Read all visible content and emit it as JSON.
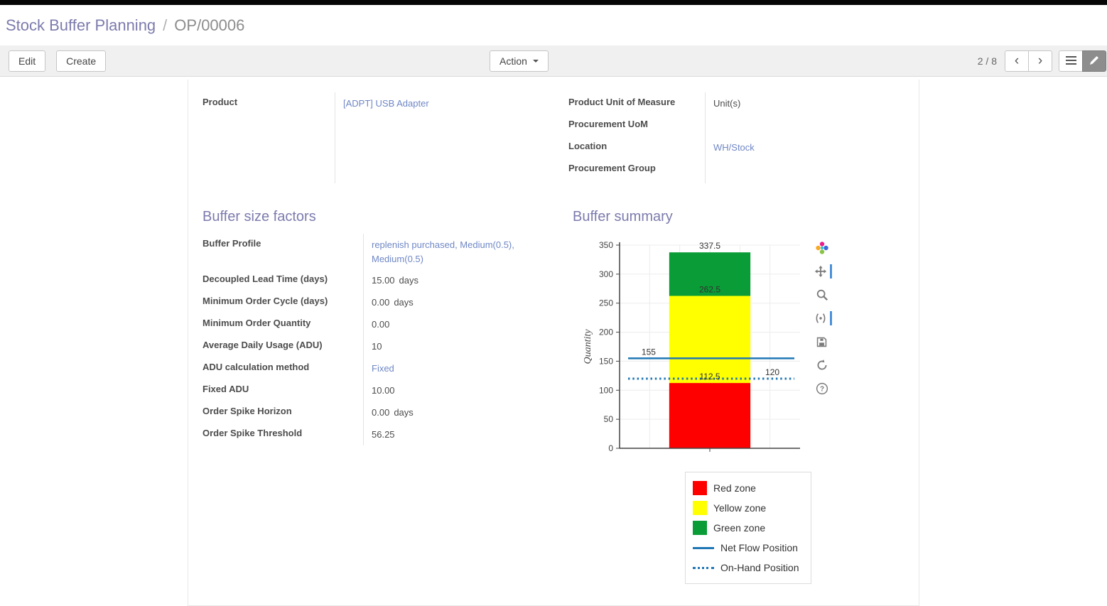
{
  "colors": {
    "heading": "#7c7bad",
    "link": "#6f87c5"
  },
  "breadcrumb": {
    "parent": "Stock Buffer Planning",
    "separator": "/",
    "current": "OP/00006"
  },
  "toolbar": {
    "edit_label": "Edit",
    "create_label": "Create",
    "action_label": "Action",
    "pager": "2 / 8",
    "icons": [
      "chevron-left",
      "chevron-right",
      "list-view",
      "form-view"
    ]
  },
  "form": {
    "product": {
      "label": "Product",
      "value": "[ADPT] USB Adapter",
      "link": true
    },
    "right": [
      {
        "name": "product-unit-of-measure",
        "label": "Product Unit of Measure",
        "value": "Unit(s)",
        "unit": "",
        "link": false
      },
      {
        "name": "procurement-uom",
        "label": "Procurement UoM",
        "value": "",
        "unit": "",
        "link": false
      },
      {
        "name": "location",
        "label": "Location",
        "value": "WH/Stock",
        "unit": "",
        "link": true
      },
      {
        "name": "procurement-group",
        "label": "Procurement Group",
        "value": "",
        "unit": "",
        "link": false
      }
    ],
    "sections": {
      "factors_title": "Buffer size factors",
      "summary_title": "Buffer summary"
    },
    "factors": {
      "rows": [
        {
          "name": "buffer-profile",
          "label": "Buffer Profile",
          "value": "replenish purchased, Medium(0.5), Medium(0.5)",
          "unit": "",
          "link": true
        },
        {
          "name": "decoupled-lead-time",
          "label": "Decoupled Lead Time (days)",
          "value": "15.00",
          "unit": "days",
          "link": false
        },
        {
          "name": "minimum-order-cycle",
          "label": "Minimum Order Cycle (days)",
          "value": "0.00",
          "unit": "days",
          "link": false
        },
        {
          "name": "minimum-order-quantity",
          "label": "Minimum Order Quantity",
          "value": "0.00",
          "unit": "",
          "link": false
        },
        {
          "name": "average-daily-usage-adu",
          "label": "Average Daily Usage (ADU)",
          "value": "10",
          "unit": "",
          "link": false
        },
        {
          "name": "adu-calculation-method",
          "label": "ADU calculation method",
          "value": "Fixed",
          "unit": "",
          "link": true
        },
        {
          "name": "fixed-adu",
          "label": "Fixed ADU",
          "value": "10.00",
          "unit": "",
          "link": false
        },
        {
          "name": "order-spike-horizon",
          "label": "Order Spike Horizon",
          "value": "0.00",
          "unit": "days",
          "link": false
        },
        {
          "name": "order-spike-threshold",
          "label": "Order Spike Threshold",
          "value": "56.25",
          "unit": "",
          "link": false
        }
      ]
    }
  },
  "chart_data": {
    "type": "bar",
    "title": "",
    "xlabel": "",
    "ylabel": "Quantity",
    "ylim": [
      0,
      350
    ],
    "yticks": [
      0,
      50,
      100,
      150,
      200,
      250,
      300,
      350
    ],
    "grid": true,
    "zones": [
      {
        "name": "Red zone",
        "from": 0,
        "to": 112.5,
        "color": "#ff0000"
      },
      {
        "name": "Yellow zone",
        "from": 112.5,
        "to": 262.5,
        "color": "#ffff00"
      },
      {
        "name": "Green zone",
        "from": 262.5,
        "to": 337.5,
        "color": "#0a9c36"
      }
    ],
    "lines": [
      {
        "name": "Net Flow Position",
        "value": 155,
        "style": "solid",
        "color": "#1f77b4"
      },
      {
        "name": "On-Hand Position",
        "value": 120,
        "style": "dotted",
        "color": "#1f77b4"
      }
    ],
    "annotations": [
      {
        "text": "337.5",
        "value": 337.5,
        "anchor": "bar"
      },
      {
        "text": "262.5",
        "value": 262.5,
        "anchor": "bar"
      },
      {
        "text": "112.5",
        "value": 112.5,
        "anchor": "bar"
      },
      {
        "text": "155",
        "value": 155,
        "anchor": "left"
      },
      {
        "text": "120",
        "value": 120,
        "anchor": "right"
      }
    ],
    "legend_position": "bottom-right",
    "legend": [
      {
        "label": "Red zone",
        "swatch": "square",
        "color": "#ff0000"
      },
      {
        "label": "Yellow zone",
        "swatch": "square",
        "color": "#ffff00"
      },
      {
        "label": "Green zone",
        "swatch": "square",
        "color": "#0a9c36"
      },
      {
        "label": "Net Flow Position",
        "swatch": "line",
        "color": "#1f77b4"
      },
      {
        "label": "On-Hand Position",
        "swatch": "dotted",
        "color": "#1f77b4"
      }
    ],
    "modebar_icons": [
      "plotly-logo",
      "pan",
      "zoom",
      "toggle-spikelines",
      "save",
      "reset-axes",
      "help"
    ]
  }
}
